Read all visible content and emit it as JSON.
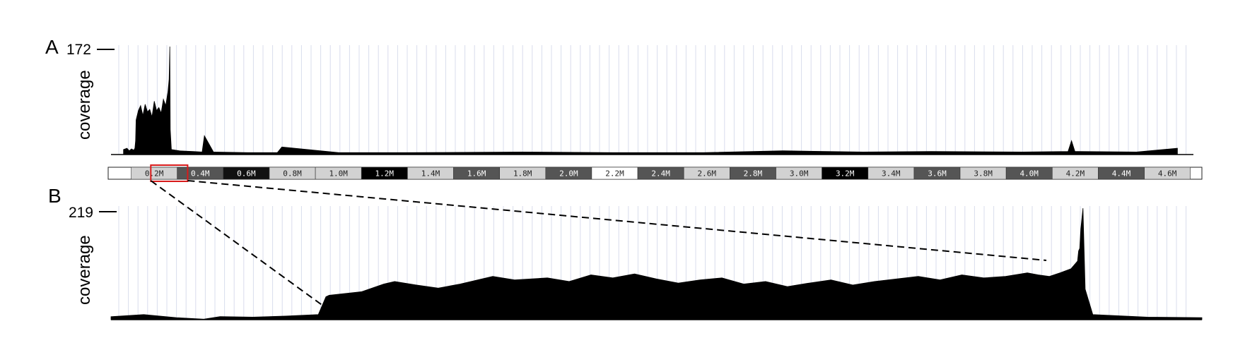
{
  "chart_data": [
    {
      "panel": "A",
      "type": "area",
      "ylabel": "coverage",
      "ymax_label": "172",
      "ylim": [
        0,
        172
      ],
      "color": "#000000",
      "x": [
        0.055,
        0.07,
        0.08,
        0.09,
        0.1,
        0.105,
        0.108,
        0.11,
        0.12,
        0.13,
        0.14,
        0.15,
        0.16,
        0.17,
        0.18,
        0.19,
        0.2,
        0.21,
        0.22,
        0.23,
        0.24,
        0.25,
        0.255,
        0.258,
        0.26,
        0.265,
        0.3,
        0.36,
        0.4,
        0.41,
        0.45,
        0.6,
        0.73,
        0.75,
        1.0,
        1.3,
        1.8,
        2.2,
        2.6,
        2.95,
        3.3,
        3.6,
        4.0,
        4.2,
        4.215,
        4.23,
        4.5,
        4.68
      ],
      "y": [
        8,
        10,
        6,
        9,
        7,
        10,
        22,
        55,
        70,
        78,
        62,
        80,
        68,
        72,
        60,
        85,
        70,
        75,
        66,
        88,
        78,
        100,
        120,
        172,
        40,
        8,
        6,
        5,
        4,
        30,
        4,
        3,
        3,
        12,
        3,
        3,
        4,
        3,
        3,
        6,
        4,
        5,
        4,
        5,
        22,
        5,
        4,
        10
      ]
    },
    {
      "panel": "B",
      "type": "area",
      "ylabel": "coverage",
      "ymax_label": "219",
      "ylim": [
        0,
        219
      ],
      "color": "#000000",
      "x": [
        0,
        0.03,
        0.06,
        0.085,
        0.1,
        0.13,
        0.16,
        0.19,
        0.197,
        0.2,
        0.23,
        0.25,
        0.26,
        0.28,
        0.3,
        0.32,
        0.34,
        0.35,
        0.37,
        0.4,
        0.42,
        0.44,
        0.46,
        0.48,
        0.5,
        0.52,
        0.54,
        0.56,
        0.58,
        0.6,
        0.62,
        0.64,
        0.66,
        0.68,
        0.7,
        0.72,
        0.74,
        0.76,
        0.78,
        0.8,
        0.82,
        0.84,
        0.85,
        0.86,
        0.87,
        0.88,
        0.886,
        0.887,
        0.888,
        0.889,
        0.891,
        0.893,
        0.9,
        0.95,
        1.0
      ],
      "y": [
        6,
        10,
        4,
        1,
        6,
        5,
        7,
        10,
        45,
        48,
        55,
        70,
        75,
        68,
        62,
        70,
        80,
        85,
        78,
        82,
        75,
        88,
        82,
        90,
        80,
        72,
        78,
        82,
        70,
        75,
        65,
        72,
        78,
        68,
        75,
        80,
        85,
        78,
        88,
        82,
        85,
        92,
        88,
        85,
        92,
        100,
        115,
        135,
        140,
        178,
        219,
        60,
        10,
        5,
        4
      ]
    }
  ],
  "ruler": {
    "ticks": [
      "0.2M",
      "0.4M",
      "0.6M",
      "0.8M",
      "1.0M",
      "1.2M",
      "1.4M",
      "1.6M",
      "1.8M",
      "2.0M",
      "2.2M",
      "2.4M",
      "2.6M",
      "2.8M",
      "3.0M",
      "3.2M",
      "3.4M",
      "3.6M",
      "3.8M",
      "4.0M",
      "4.2M",
      "4.4M",
      "4.6M"
    ],
    "xlim": [
      0.0,
      4.75
    ],
    "highlight": [
      0.185,
      0.345
    ],
    "highlight_color": "#d81b1b",
    "segment_colors": [
      "#d2d2d2",
      "#555555",
      "#000000",
      "#ffffff",
      "#111111",
      "#ffffff"
    ]
  },
  "labels": {
    "panel_a": "A",
    "panel_b": "B"
  }
}
